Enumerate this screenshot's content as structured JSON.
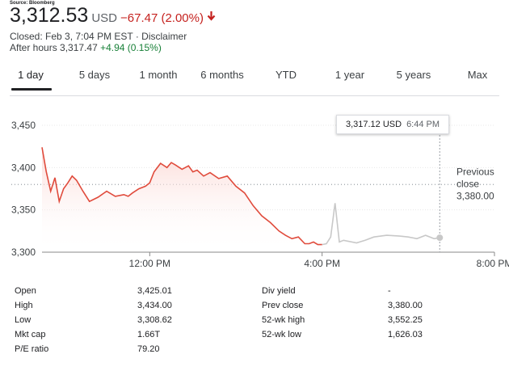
{
  "source": "Source: Bloomberg",
  "quote": {
    "price": "3,312.53",
    "currency": "USD",
    "change": "−67.47 (2.00%)",
    "closed": "Closed: Feb 3, 7:04 PM EST · Disclaimer",
    "after_hours_label": "After hours 3,317.47",
    "after_hours_change": "+4.94 (0.15%)"
  },
  "colors": {
    "negative": "#c5221f",
    "positive": "#188038",
    "line_regular": "#e04b3c",
    "line_after": "#c8c8c8"
  },
  "tabs": [
    {
      "label": "1 day",
      "active": true
    },
    {
      "label": "5 days"
    },
    {
      "label": "1 month"
    },
    {
      "label": "6 months"
    },
    {
      "label": "YTD"
    },
    {
      "label": "1 year"
    },
    {
      "label": "5 years"
    },
    {
      "label": "Max"
    }
  ],
  "tooltip": {
    "price": "3,317.12 USD",
    "time": "6:44 PM"
  },
  "chart_data": {
    "type": "line",
    "x_unit": "hour (EST)",
    "x_range": [
      9.5,
      20.0
    ],
    "ylim": [
      3300,
      3450
    ],
    "y_ticks": [
      3450,
      3400,
      3350,
      3300
    ],
    "y_tick_labels": [
      "3,450",
      "3,400",
      "3,350",
      "3,300"
    ],
    "x_ticks": [
      12,
      16,
      20
    ],
    "x_tick_labels": [
      "12:00 PM",
      "4:00 PM",
      "8:00 PM"
    ],
    "previous_close": 3380.0,
    "previous_close_label": [
      "Previous",
      "close",
      "3,380.00"
    ],
    "grid": "dotted horizontal",
    "hover_x": 18.73,
    "series": [
      {
        "session": "regular",
        "x": [
          9.5,
          9.6,
          9.7,
          9.8,
          9.9,
          10.0,
          10.1,
          10.2,
          10.3,
          10.45,
          10.6,
          10.8,
          11.0,
          11.2,
          11.4,
          11.5,
          11.6,
          11.75,
          11.9,
          12.0,
          12.1,
          12.25,
          12.4,
          12.5,
          12.6,
          12.75,
          12.9,
          13.0,
          13.1,
          13.25,
          13.4,
          13.6,
          13.8,
          14.0,
          14.2,
          14.4,
          14.6,
          14.8,
          15.0,
          15.15,
          15.3,
          15.45,
          15.6,
          15.7,
          15.8,
          15.9,
          16.0
        ],
        "y": [
          3424,
          3395,
          3372,
          3388,
          3360,
          3375,
          3382,
          3390,
          3385,
          3372,
          3360,
          3365,
          3372,
          3366,
          3368,
          3366,
          3370,
          3375,
          3378,
          3382,
          3395,
          3405,
          3400,
          3406,
          3403,
          3398,
          3402,
          3395,
          3397,
          3390,
          3394,
          3387,
          3390,
          3378,
          3370,
          3355,
          3343,
          3335,
          3325,
          3320,
          3316,
          3318,
          3310,
          3310,
          3312,
          3309,
          3309
        ]
      },
      {
        "session": "after-hours",
        "x": [
          16.0,
          16.1,
          16.2,
          16.3,
          16.4,
          16.5,
          16.8,
          17.0,
          17.2,
          17.5,
          17.8,
          18.0,
          18.2,
          18.4,
          18.6,
          18.73
        ],
        "y": [
          3309,
          3310,
          3318,
          3358,
          3312,
          3314,
          3311,
          3314,
          3318,
          3320,
          3319,
          3318,
          3316,
          3320,
          3316,
          3317.12
        ]
      }
    ]
  },
  "stats": {
    "left": [
      {
        "label": "Open",
        "value": "3,425.01"
      },
      {
        "label": "High",
        "value": "3,434.00"
      },
      {
        "label": "Low",
        "value": "3,308.62"
      },
      {
        "label": "Mkt cap",
        "value": "1.66T"
      },
      {
        "label": "P/E ratio",
        "value": "79.20"
      }
    ],
    "right": [
      {
        "label": "Div yield",
        "value": "-"
      },
      {
        "label": "Prev close",
        "value": "3,380.00"
      },
      {
        "label": "52-wk high",
        "value": "3,552.25"
      },
      {
        "label": "52-wk low",
        "value": "1,626.03"
      }
    ]
  }
}
